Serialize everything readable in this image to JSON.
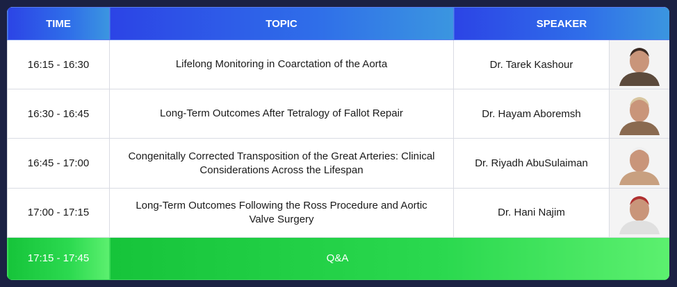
{
  "header": {
    "time": "TIME",
    "topic": "TOPIC",
    "speaker": "SPEAKER"
  },
  "rows": [
    [
      "16:15 - 16:30",
      "Lifelong Monitoring in Coarctation of the Aorta",
      "Dr. Tarek Kashour"
    ],
    [
      "16:30 - 16:45",
      "Long-Term Outcomes After Tetralogy of Fallot Repair",
      "Dr. Hayam Aboremsh"
    ],
    [
      "16:45 - 17:00",
      "Congenitally Corrected Transposition of the Great Arteries: Clinical Considerations Across the Lifespan",
      "Dr. Riyadh AbuSulaiman"
    ],
    [
      "17:00 - 17:15",
      "Long-Term Outcomes Following the Ross Procedure and Aortic Valve Surgery",
      "Dr. Hani Najim"
    ]
  ],
  "qa": {
    "time": "17:15 - 17:45",
    "label": "Q&A"
  }
}
